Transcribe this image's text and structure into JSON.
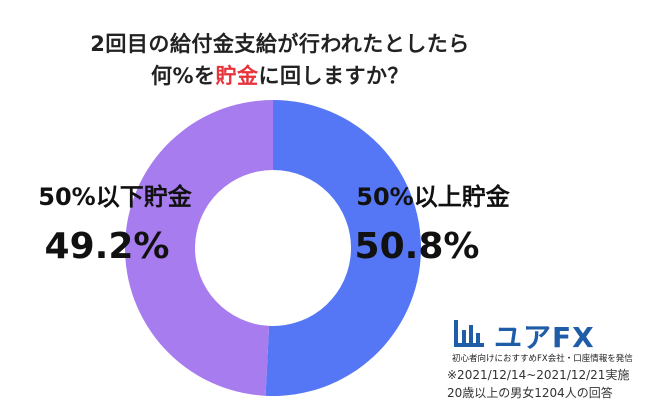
{
  "title_line1": "2回目の給付金支給が行われたとしたら",
  "title_line2_pre": "何%を",
  "title_line2_highlight": "貯金",
  "title_line2_post": "に回しますか？",
  "colors": {
    "highlight": "#e8333a",
    "series_above": "#5677f5",
    "series_below": "#a77cee",
    "logo": "#1f5da8"
  },
  "chart_data": {
    "type": "pie",
    "donut": true,
    "title": "2回目の給付金支給が行われたとしたら何%を貯金に回しますか？",
    "slices": [
      {
        "label": "50%以上貯金",
        "value": 50.8,
        "value_label": "50.8%",
        "color": "#5677f5"
      },
      {
        "label": "50%以下貯金",
        "value": 49.2,
        "value_label": "49.2%",
        "color": "#a77cee"
      }
    ]
  },
  "logo": {
    "icon": "bar-chart-icon",
    "text": "ユアFX",
    "tagline": "初心者向けにおすすめFX会社・口座情報を発信"
  },
  "notes": {
    "period": "※2021/12/14~2021/12/21実施",
    "sample": "20歳以上の男女1204人の回答"
  }
}
